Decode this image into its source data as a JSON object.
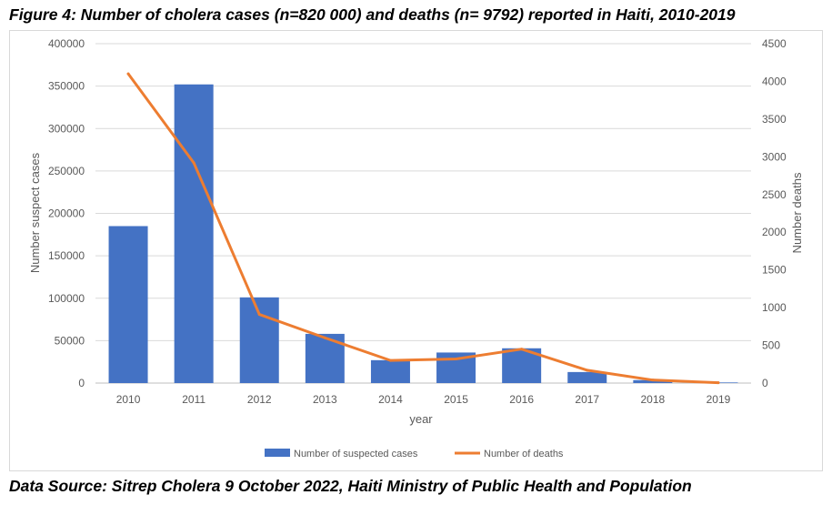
{
  "figure_title": "Figure 4: Number of cholera cases (n=820 000) and deaths (n= 9792) reported in Haiti, 2010-2019",
  "source_text": "Data Source: Sitrep Cholera 9 October 2022, Haiti Ministry of Public Health and Population",
  "chart_data": {
    "type": "bar",
    "categories": [
      "2010",
      "2011",
      "2012",
      "2013",
      "2014",
      "2015",
      "2016",
      "2017",
      "2018",
      "2019"
    ],
    "series": [
      {
        "name": "Number of suspected  cases",
        "type": "bar",
        "axis": "left",
        "color": "#4472c4",
        "values": [
          185000,
          352000,
          101000,
          58000,
          27000,
          36000,
          41000,
          13000,
          3500,
          720
        ]
      },
      {
        "name": "Number of deaths",
        "type": "line",
        "axis": "right",
        "color": "#ed7d31",
        "values": [
          4100,
          2920,
          910,
          600,
          300,
          320,
          450,
          170,
          40,
          5
        ]
      }
    ],
    "xlabel": "year",
    "ylabel": "Number suspect cases",
    "y2label": "Number deaths",
    "ylim": [
      0,
      400000
    ],
    "yticks": [
      "0",
      "50000",
      "100000",
      "150000",
      "200000",
      "250000",
      "300000",
      "350000",
      "400000"
    ],
    "y2lim": [
      0,
      4500
    ],
    "y2ticks": [
      "0",
      "500",
      "1000",
      "1500",
      "2000",
      "2500",
      "3000",
      "3500",
      "4000",
      "4500"
    ],
    "grid": true,
    "legend": "bottom"
  }
}
